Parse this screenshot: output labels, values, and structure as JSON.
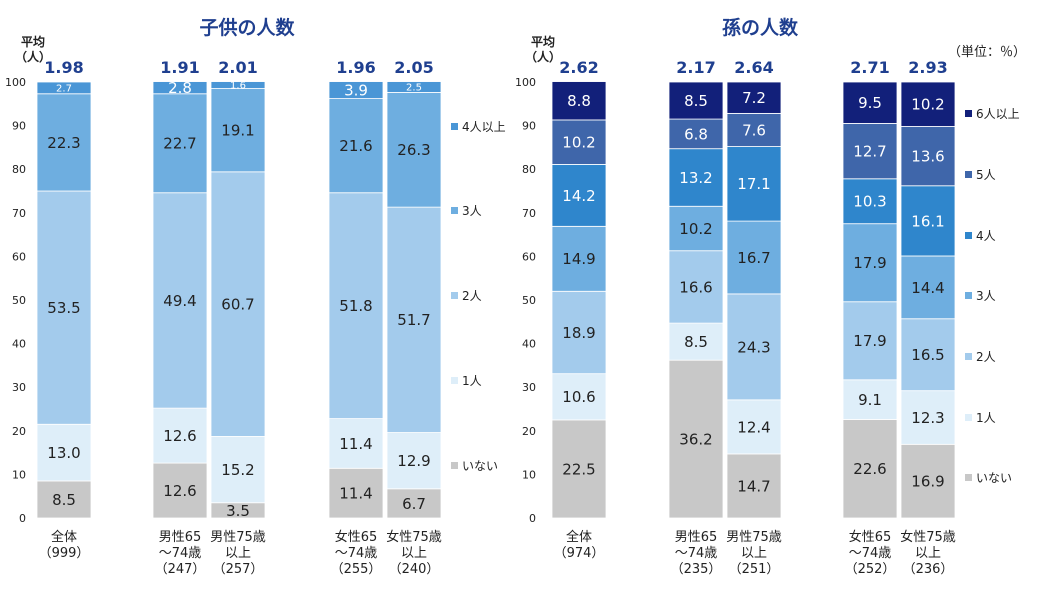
{
  "chart_data": [
    {
      "type": "bar",
      "stacked": true,
      "title": "子供の人数",
      "avg_label": [
        "平均",
        "（人）"
      ],
      "categories": [
        {
          "lines": [
            "全体",
            "（999）"
          ],
          "avg": "1.98"
        },
        {
          "lines": [
            "男性65",
            "～74歳",
            "（247）"
          ],
          "avg": "1.91"
        },
        {
          "lines": [
            "男性75歳",
            "以上",
            "（257）"
          ],
          "avg": "2.01"
        },
        {
          "lines": [
            "女性65",
            "～74歳",
            "（255）"
          ],
          "avg": "1.96"
        },
        {
          "lines": [
            "女性75歳",
            "以上",
            "（240）"
          ],
          "avg": "2.05"
        }
      ],
      "ylim": [
        0,
        100
      ],
      "yticks": [
        "0",
        "10",
        "20",
        "30",
        "40",
        "50",
        "60",
        "70",
        "80",
        "90",
        "100"
      ],
      "series": [
        {
          "name": "いない",
          "color": "#c8c8c8",
          "label_color": "#222222",
          "values": [
            8.5,
            12.6,
            3.5,
            11.4,
            6.7
          ],
          "labels": [
            "8.5",
            "12.6",
            "3.5",
            "11.4",
            "6.7"
          ]
        },
        {
          "name": "1人",
          "color": "#deeef9",
          "label_color": "#222222",
          "values": [
            13.0,
            12.6,
            15.2,
            11.4,
            12.9
          ],
          "labels": [
            "13.0",
            "12.6",
            "15.2",
            "11.4",
            "12.9"
          ]
        },
        {
          "name": "2人",
          "color": "#a3cbec",
          "label_color": "#222222",
          "values": [
            53.5,
            49.4,
            60.7,
            51.8,
            51.7
          ],
          "labels": [
            "53.5",
            "49.4",
            "60.7",
            "51.8",
            "51.7"
          ]
        },
        {
          "name": "3人",
          "color": "#6eaee0",
          "label_color": "#222222",
          "values": [
            22.3,
            22.7,
            19.1,
            21.6,
            26.3
          ],
          "labels": [
            "22.3",
            "22.7",
            "19.1",
            "21.6",
            "26.3"
          ]
        },
        {
          "name": "4人以上",
          "color": "#4a96d6",
          "label_color": "#ffffff",
          "values": [
            2.7,
            2.8,
            1.6,
            3.9,
            2.5
          ],
          "labels": [
            "2.7",
            "2.8",
            "1.6",
            "3.9",
            "2.5"
          ]
        }
      ]
    },
    {
      "type": "bar",
      "stacked": true,
      "title": "孫の人数",
      "unit_note": "（単位：％）",
      "avg_label": [
        "平均",
        "（人）"
      ],
      "categories": [
        {
          "lines": [
            "全体",
            "（974）"
          ],
          "avg": "2.62"
        },
        {
          "lines": [
            "男性65",
            "～74歳",
            "（235）"
          ],
          "avg": "2.17"
        },
        {
          "lines": [
            "男性75歳",
            "以上",
            "（251）"
          ],
          "avg": "2.64"
        },
        {
          "lines": [
            "女性65",
            "～74歳",
            "（252）"
          ],
          "avg": "2.71"
        },
        {
          "lines": [
            "女性75歳",
            "以上",
            "（236）"
          ],
          "avg": "2.93"
        }
      ],
      "ylim": [
        0,
        100
      ],
      "yticks": [
        "0",
        "10",
        "20",
        "30",
        "40",
        "50",
        "60",
        "70",
        "80",
        "90",
        "100"
      ],
      "series": [
        {
          "name": "いない",
          "color": "#c8c8c8",
          "label_color": "#222222",
          "values": [
            22.5,
            36.2,
            14.7,
            22.6,
            16.9
          ],
          "labels": [
            "22.5",
            "36.2",
            "14.7",
            "22.6",
            "16.9"
          ]
        },
        {
          "name": "1人",
          "color": "#deeef9",
          "label_color": "#222222",
          "values": [
            10.6,
            8.5,
            12.4,
            9.1,
            12.3
          ],
          "labels": [
            "10.6",
            "8.5",
            "12.4",
            "9.1",
            "12.3"
          ]
        },
        {
          "name": "2人",
          "color": "#a3cbec",
          "label_color": "#222222",
          "values": [
            18.9,
            16.6,
            24.3,
            17.9,
            16.5
          ],
          "labels": [
            "18.9",
            "16.6",
            "24.3",
            "17.9",
            "16.5"
          ]
        },
        {
          "name": "3人",
          "color": "#6eaee0",
          "label_color": "#222222",
          "values": [
            14.9,
            10.2,
            16.7,
            17.9,
            14.4
          ],
          "labels": [
            "14.9",
            "10.2",
            "16.7",
            "17.9",
            "14.4"
          ]
        },
        {
          "name": "4人",
          "color": "#2f86cc",
          "label_color": "#ffffff",
          "values": [
            14.2,
            13.2,
            17.1,
            10.3,
            16.1
          ],
          "labels": [
            "14.2",
            "13.2",
            "17.1",
            "10.3",
            "16.1"
          ]
        },
        {
          "name": "5人",
          "color": "#3f66aa",
          "label_color": "#ffffff",
          "values": [
            10.2,
            6.8,
            7.6,
            12.7,
            13.6
          ],
          "labels": [
            "10.2",
            "6.8",
            "7.6",
            "12.7",
            "13.6"
          ]
        },
        {
          "name": "6人以上",
          "color": "#12207a",
          "label_color": "#ffffff",
          "values": [
            8.8,
            8.5,
            7.2,
            9.5,
            10.2
          ],
          "labels": [
            "8.8",
            "8.5",
            "7.2",
            "9.5",
            "10.2"
          ]
        }
      ]
    }
  ]
}
